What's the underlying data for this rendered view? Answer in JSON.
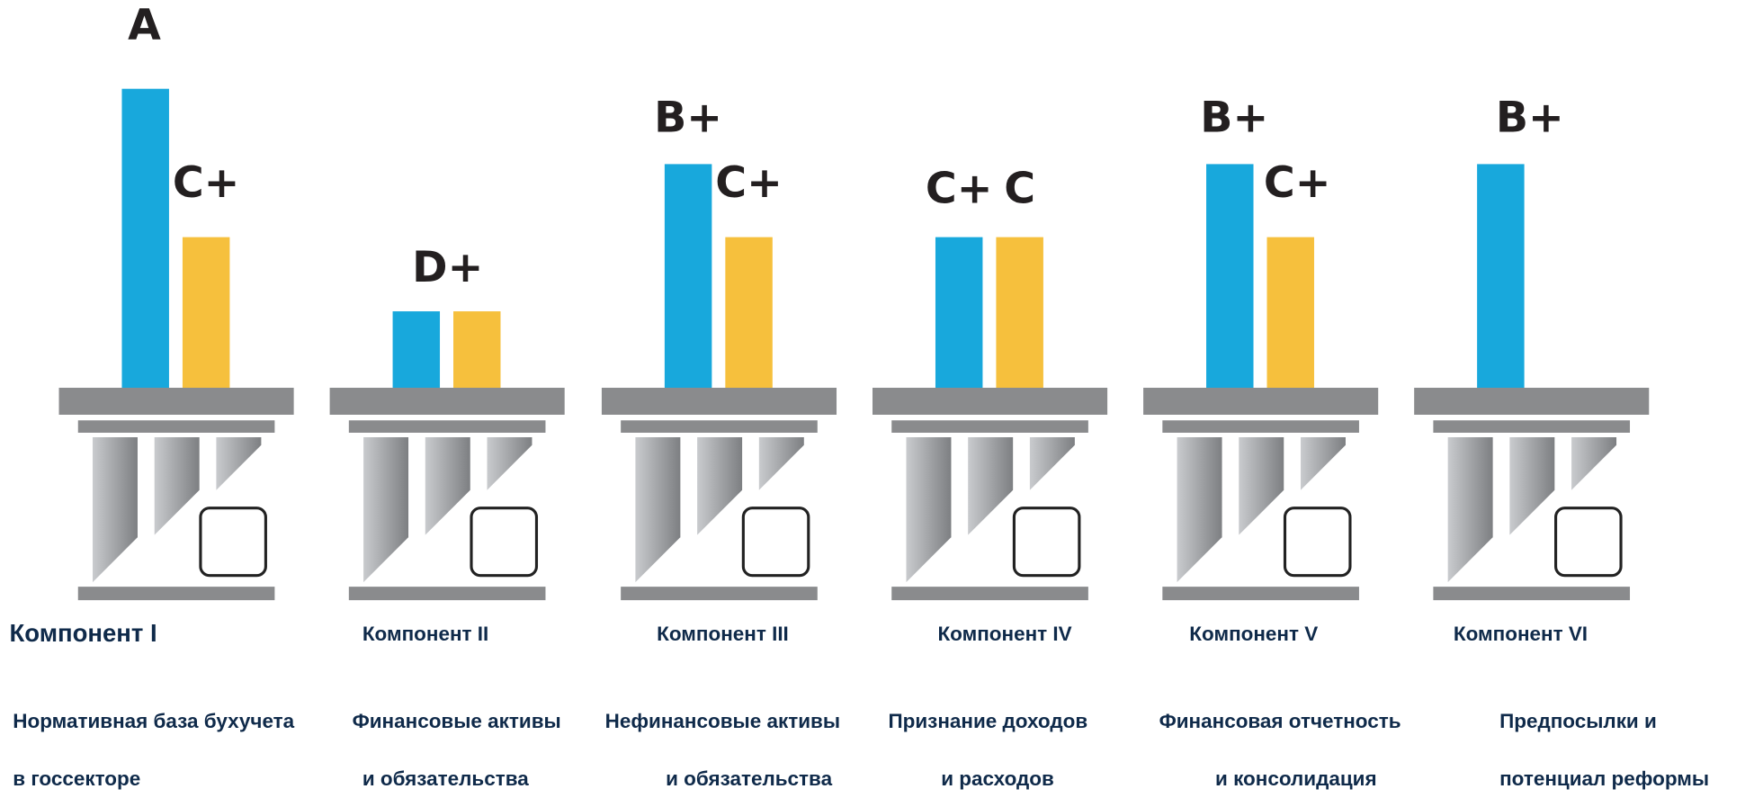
{
  "components": [
    {
      "name": "Компонент I",
      "title": [
        "Нормативная база бухучета",
        "в госсекторе"
      ],
      "grades": [
        "A",
        "C+"
      ]
    },
    {
      "name": "Компонент II",
      "title": [
        "Финансовые активы",
        "и обязательства"
      ],
      "grades": [
        "D+"
      ]
    },
    {
      "name": "Компонент III",
      "title": [
        "Нефинансовые активы",
        "и обязательства"
      ],
      "grades": [
        "B+",
        "C+"
      ]
    },
    {
      "name": "Компонент IV",
      "title": [
        "Признание доходов",
        "и расходов"
      ],
      "grades": [
        "C+",
        "C"
      ]
    },
    {
      "name": "Компонент V",
      "title": [
        "Финансовая отчетность",
        "и консолидация"
      ],
      "grades": [
        "B+",
        "C+"
      ]
    },
    {
      "name": "Компонент VI",
      "title": [
        "Предпосылки и",
        "потенциал реформы"
      ],
      "grades": [
        "B+"
      ]
    }
  ]
}
